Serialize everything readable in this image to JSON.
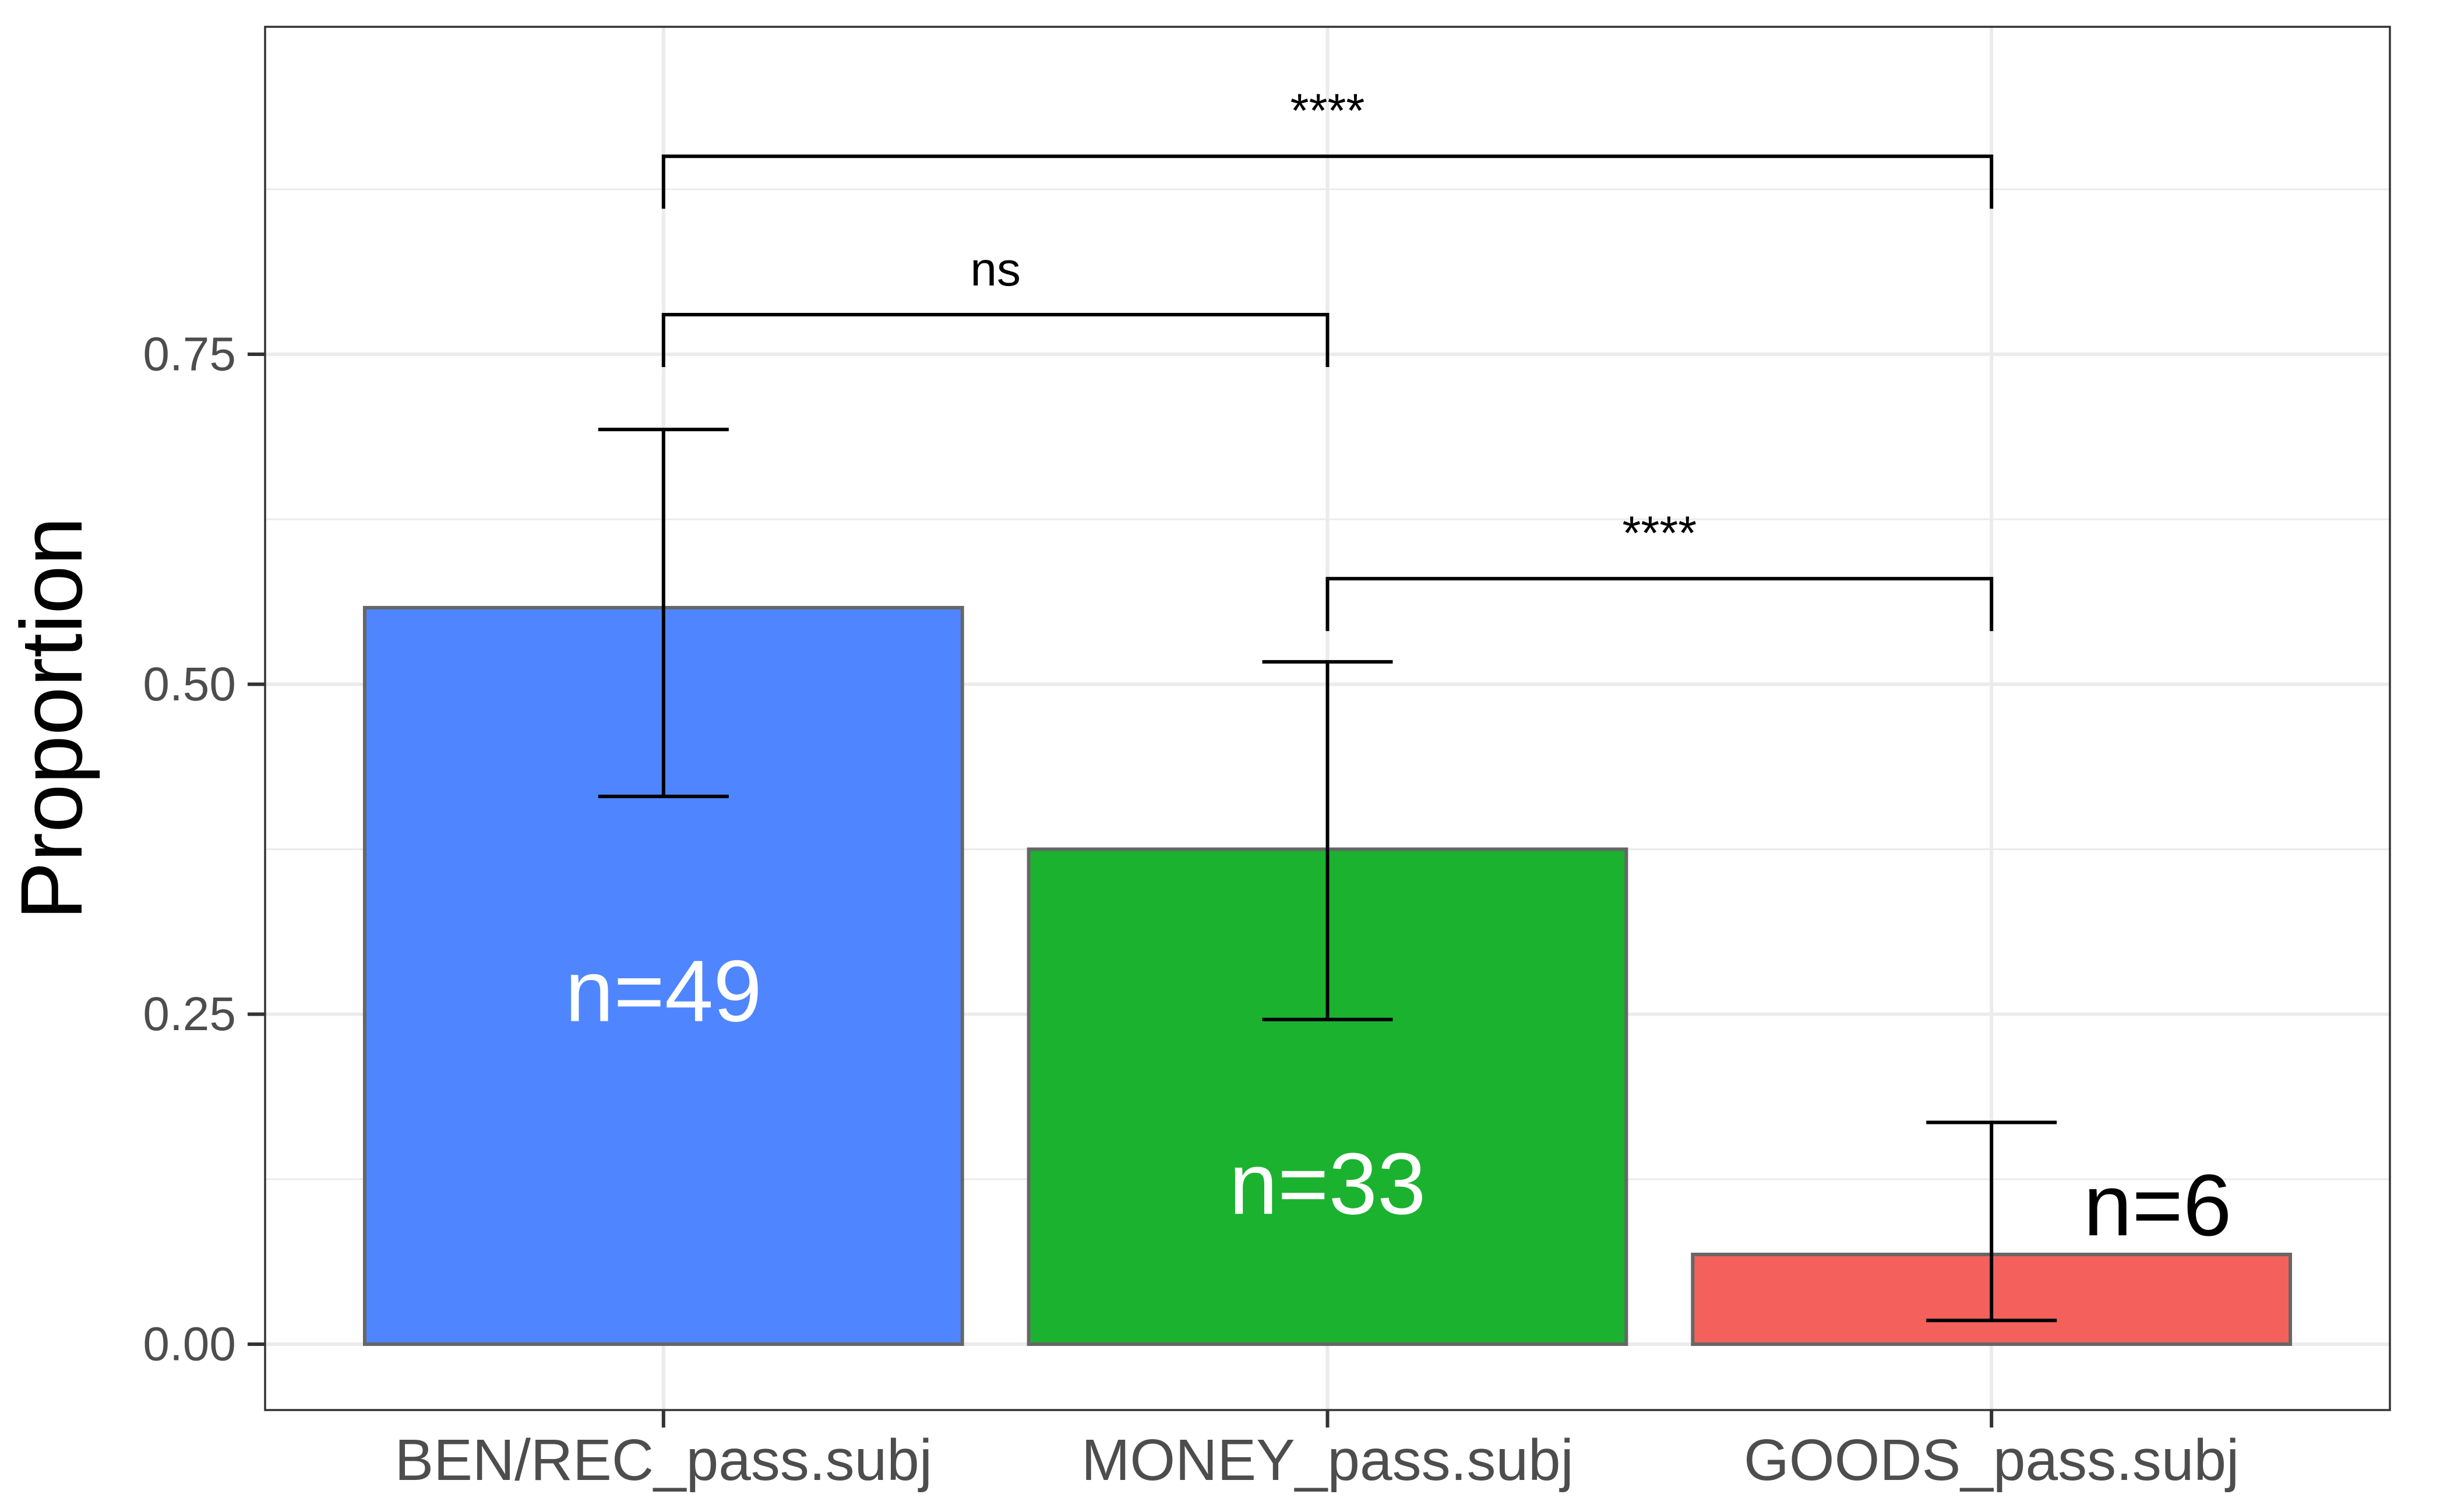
{
  "chart_data": {
    "type": "bar",
    "title": "",
    "xlabel": "",
    "ylabel": "Proportion",
    "ylim": [
      -0.095,
      0.995
    ],
    "y_ticks": [
      0,
      0.25,
      0.5,
      0.75
    ],
    "y_tick_labels": [
      "0.00",
      "0.25",
      "0.50",
      "0.75"
    ],
    "grid": true,
    "categories": [
      "BEN/REC_pass.subj",
      "MONEY_pass.subj",
      "GOODS_pass.subj"
    ],
    "values": [
      0.558,
      0.375,
      0.068
    ],
    "error_low": [
      0.415,
      0.246,
      0.018
    ],
    "error_high": [
      0.693,
      0.517,
      0.168
    ],
    "colors": [
      "#4F86FF",
      "#1BB22F",
      "#F4605C"
    ],
    "bar_labels": [
      "n=49",
      "n=33",
      "n=6"
    ],
    "bar_label_colors": [
      "#ffffff",
      "#ffffff",
      "#000000"
    ],
    "comparisons": [
      {
        "from": 0,
        "to": 1,
        "label": "ns",
        "y": 0.78
      },
      {
        "from": 1,
        "to": 2,
        "label": "****",
        "y": 0.58
      },
      {
        "from": 0,
        "to": 2,
        "label": "****",
        "y": 0.9
      }
    ]
  }
}
